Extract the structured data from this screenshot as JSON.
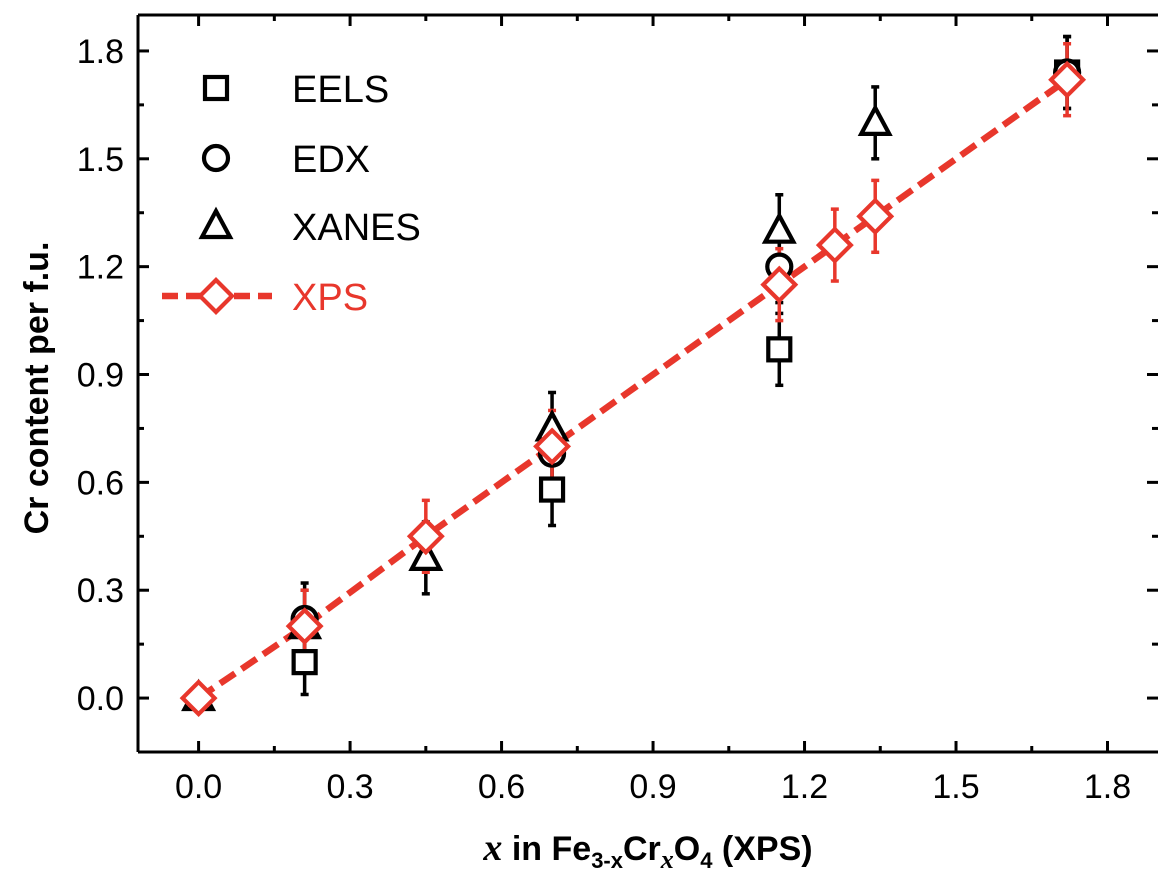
{
  "chart_data": {
    "type": "scatter",
    "xlabel": {
      "var": "x",
      "word": " in ",
      "fe": "Fe",
      "fe_sub": "3-x",
      "cr": "Cr",
      "cr_sub": "x",
      "o": "O",
      "o_sub": "4",
      "suffix": " (XPS)"
    },
    "ylabel": "Cr content per f.u.",
    "xlim": [
      -0.12,
      1.9
    ],
    "ylim": [
      -0.15,
      1.9
    ],
    "xticks": [
      "0.0",
      "0.3",
      "0.6",
      "0.9",
      "1.2",
      "1.5",
      "1.8"
    ],
    "yticks": [
      "0.0",
      "0.3",
      "0.6",
      "0.9",
      "1.2",
      "1.5",
      "1.8"
    ],
    "legend_position": "top-left",
    "series": [
      {
        "name": "EELS",
        "marker": "square",
        "color": "#000000",
        "line": false,
        "x": [
          0.21,
          0.7,
          1.15,
          1.72
        ],
        "y": [
          0.1,
          0.58,
          0.97,
          1.74
        ],
        "err": [
          0.09,
          0.1,
          0.1,
          0.1
        ]
      },
      {
        "name": "EDX",
        "marker": "circle",
        "color": "#000000",
        "line": false,
        "x": [
          0.21,
          0.7,
          1.15,
          1.72
        ],
        "y": [
          0.22,
          0.68,
          1.2,
          1.74
        ],
        "err": [
          0.1,
          0.1,
          0.1,
          0.1
        ]
      },
      {
        "name": "XANES",
        "marker": "triangle",
        "color": "#000000",
        "line": false,
        "x": [
          0.0,
          0.21,
          0.45,
          0.7,
          1.15,
          1.34
        ],
        "y": [
          0.0,
          0.2,
          0.39,
          0.75,
          1.3,
          1.6
        ],
        "err": [
          0.0,
          0.1,
          0.1,
          0.1,
          0.1,
          0.1
        ]
      },
      {
        "name": "XPS",
        "marker": "diamond",
        "color": "#e8372c",
        "line": true,
        "x": [
          0.0,
          0.21,
          0.45,
          0.7,
          1.15,
          1.26,
          1.34,
          1.72
        ],
        "y": [
          0.0,
          0.2,
          0.45,
          0.7,
          1.15,
          1.26,
          1.34,
          1.72
        ],
        "err": [
          0.0,
          0.1,
          0.1,
          0.1,
          0.1,
          0.1,
          0.1,
          0.1
        ]
      }
    ]
  }
}
